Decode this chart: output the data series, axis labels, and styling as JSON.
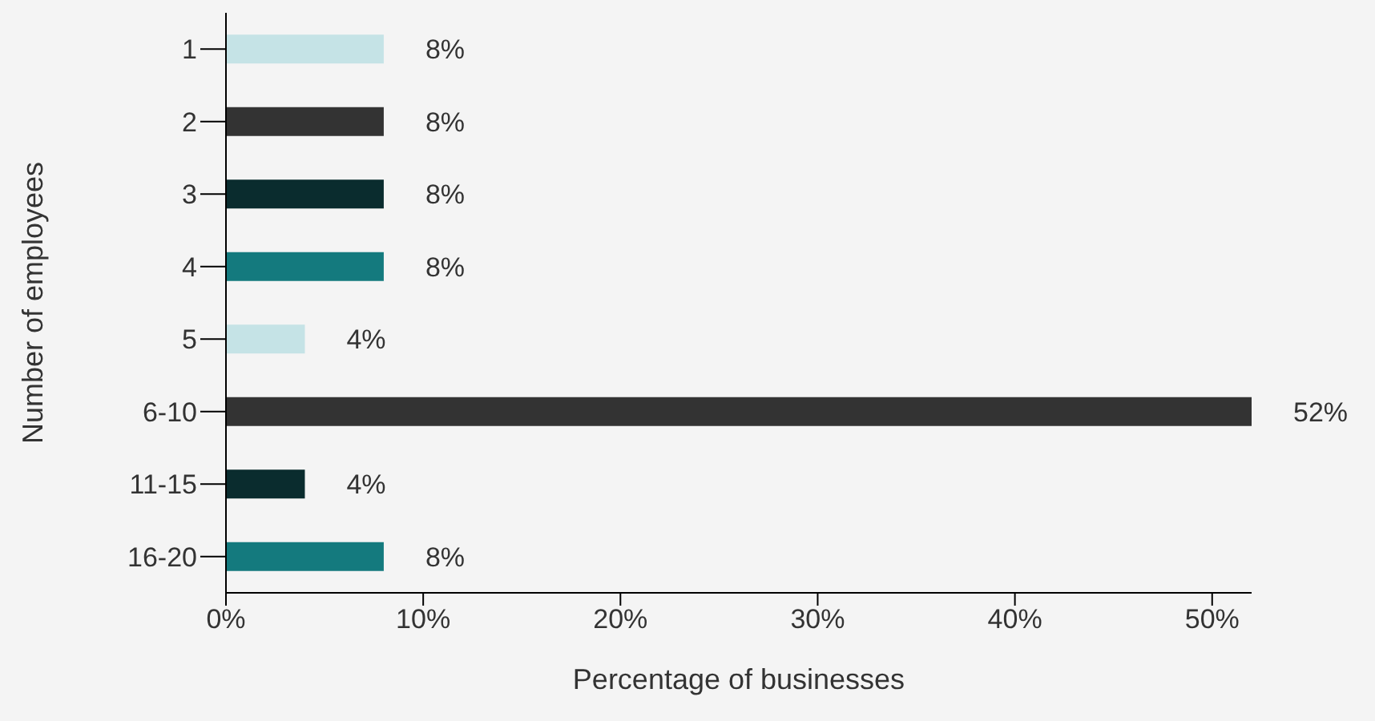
{
  "chart_data": {
    "type": "bar",
    "orientation": "horizontal",
    "xlabel": "Percentage of businesses",
    "ylabel": "Number of employees",
    "categories": [
      "1",
      "2",
      "3",
      "4",
      "5",
      "6-10",
      "11-15",
      "16-20"
    ],
    "values": [
      8,
      8,
      8,
      8,
      4,
      52,
      4,
      8
    ],
    "colors": [
      "#c5e3e6",
      "#333333",
      "#0a2c2e",
      "#147a7e",
      "#c5e3e6",
      "#333333",
      "#0a2c2e",
      "#147a7e"
    ],
    "value_labels": [
      "8%",
      "8%",
      "8%",
      "8%",
      "4%",
      "52%",
      "4%",
      "8%"
    ],
    "xlim": [
      0,
      52
    ],
    "xticks": [
      {
        "value": 0,
        "label": "0%"
      },
      {
        "value": 10,
        "label": "10%"
      },
      {
        "value": 20,
        "label": "20%"
      },
      {
        "value": 30,
        "label": "30%"
      },
      {
        "value": 40,
        "label": "40%"
      },
      {
        "value": 50,
        "label": "50%"
      }
    ],
    "grid": false,
    "legend": false
  }
}
